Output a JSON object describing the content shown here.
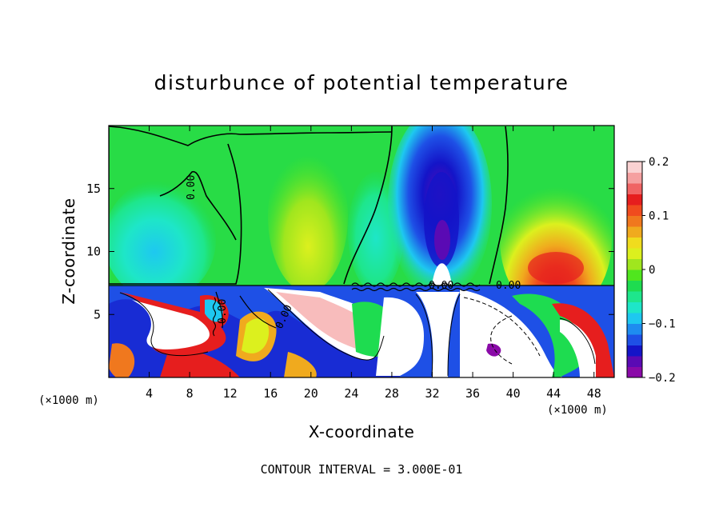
{
  "chart_data": {
    "type": "heatmap",
    "title": "disturbunce of potential temperature",
    "xlabel": "X-coordinate",
    "ylabel": "Z-coordinate",
    "x_unit": "(×1000 m)",
    "x_ticks": [
      "4",
      "8",
      "12",
      "16",
      "20",
      "24",
      "28",
      "32",
      "36",
      "40",
      "44",
      "48"
    ],
    "y_ticks": [
      "5",
      "10",
      "15"
    ],
    "xlim": [
      0,
      50
    ],
    "ylim": [
      0,
      20
    ],
    "colorbar": {
      "min": -0.2,
      "max": 0.2,
      "tick_labels": [
        "0.2",
        "0.1",
        "0",
        "−0.1",
        "−0.2"
      ],
      "colors": [
        "#8a0aa8",
        "#5a0ab4",
        "#1414c8",
        "#1e50e6",
        "#1e8cf0",
        "#1ec8f0",
        "#1ee6c8",
        "#1ee68c",
        "#1edc50",
        "#50e61e",
        "#a0e61e",
        "#dcf01e",
        "#f0dc1e",
        "#f0aa1e",
        "#f0781e",
        "#f04b1e",
        "#e61e1e",
        "#f06464",
        "#f5a0a0",
        "#fad2d2"
      ]
    },
    "contour_labels": [
      "0.00",
      "0.00",
      "0.00",
      "0.00",
      "0.00"
    ],
    "annotation": "CONTOUR INTERVAL = 3.000E-01"
  }
}
